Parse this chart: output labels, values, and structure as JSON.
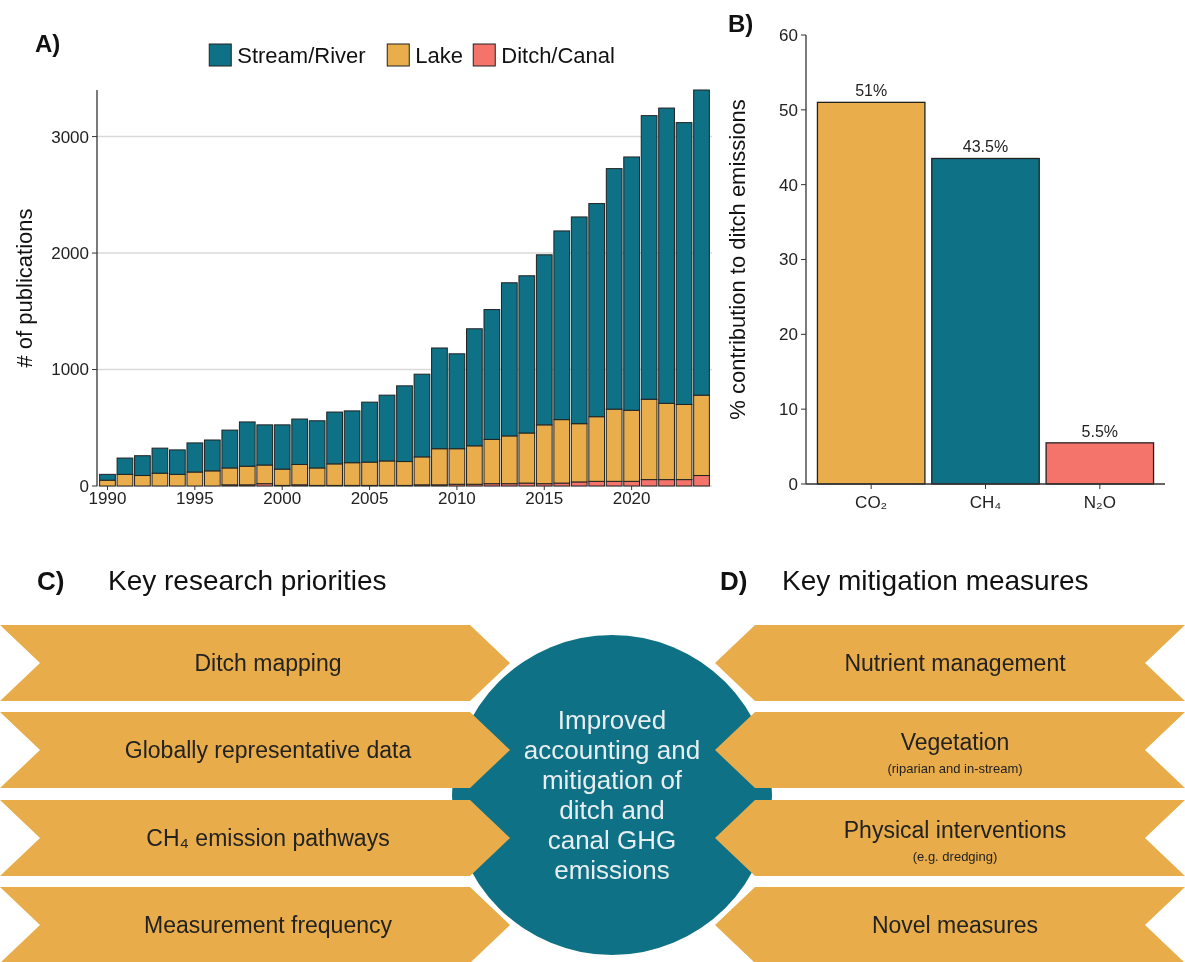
{
  "chart_data": [
    {
      "type": "bar",
      "stacked": true,
      "annotations": [
        "A)"
      ],
      "ylabel": "# of publications",
      "legend": "top",
      "grid": "y",
      "x": [
        1990,
        1991,
        1992,
        1993,
        1994,
        1995,
        1996,
        1997,
        1998,
        1999,
        2000,
        2001,
        2002,
        2003,
        2004,
        2005,
        2006,
        2007,
        2008,
        2009,
        2010,
        2011,
        2012,
        2013,
        2014,
        2015,
        2016,
        2017,
        2018,
        2019,
        2020,
        2021,
        2022,
        2023,
        2024
      ],
      "xlim": [
        1989.4,
        2024.6
      ],
      "xticks": [
        1990,
        1995,
        2000,
        2005,
        2010,
        2015,
        2020
      ],
      "ylim": [
        0,
        3400
      ],
      "yticks": [
        0,
        1000,
        2000,
        3000
      ],
      "series": [
        {
          "name": "Ditch/Canal",
          "color": "#f4736a",
          "values": [
            0,
            0,
            0,
            0,
            0,
            0,
            0,
            10,
            10,
            20,
            5,
            10,
            5,
            5,
            5,
            5,
            5,
            5,
            10,
            10,
            15,
            15,
            20,
            20,
            25,
            20,
            25,
            35,
            40,
            40,
            40,
            55,
            55,
            55,
            90
          ]
        },
        {
          "name": "Lake",
          "color": "#e9ae4b",
          "values": [
            50,
            100,
            90,
            110,
            100,
            120,
            130,
            145,
            160,
            160,
            140,
            175,
            150,
            185,
            195,
            200,
            210,
            205,
            240,
            310,
            305,
            330,
            380,
            410,
            430,
            505,
            545,
            500,
            555,
            620,
            610,
            690,
            655,
            645,
            690
          ]
        },
        {
          "name": "Stream/River",
          "color": "#0e7185",
          "values": [
            50,
            140,
            170,
            215,
            210,
            250,
            265,
            325,
            380,
            345,
            380,
            390,
            405,
            445,
            445,
            515,
            565,
            650,
            710,
            865,
            815,
            1005,
            1115,
            1315,
            1350,
            1460,
            1620,
            1775,
            1830,
            2065,
            2175,
            2435,
            2535,
            2420,
            2620
          ]
        }
      ]
    },
    {
      "type": "bar",
      "annotations": [
        "B)"
      ],
      "ylabel": "% contribution to ditch emissions",
      "categories": [
        "CO₂",
        "CH₄",
        "N₂O"
      ],
      "values": [
        51,
        43.5,
        5.5
      ],
      "colors": [
        "#e9ae4b",
        "#0e7185",
        "#f4736a"
      ],
      "value_labels": [
        "51%",
        "43.5%",
        "5.5%"
      ],
      "ylim": [
        0,
        60
      ],
      "yticks": [
        0,
        10,
        20,
        30,
        40,
        50,
        60
      ]
    },
    {
      "type": "other",
      "title": "Key research priorities",
      "annotations": [
        "C)",
        "Ditch mapping",
        "Globally representative data",
        "CH₄ emission pathways",
        "Measurement frequency",
        "Improved accounting and mitigation of ditch and canal GHG emissions"
      ]
    },
    {
      "type": "other",
      "title": "Key mitigation measures",
      "annotations": [
        "D)",
        "Nutrient management",
        "Vegetation",
        "(riparian and in-stream)",
        "Physical interventions",
        "(e.g. dredging)",
        "Novel measures"
      ]
    }
  ]
}
